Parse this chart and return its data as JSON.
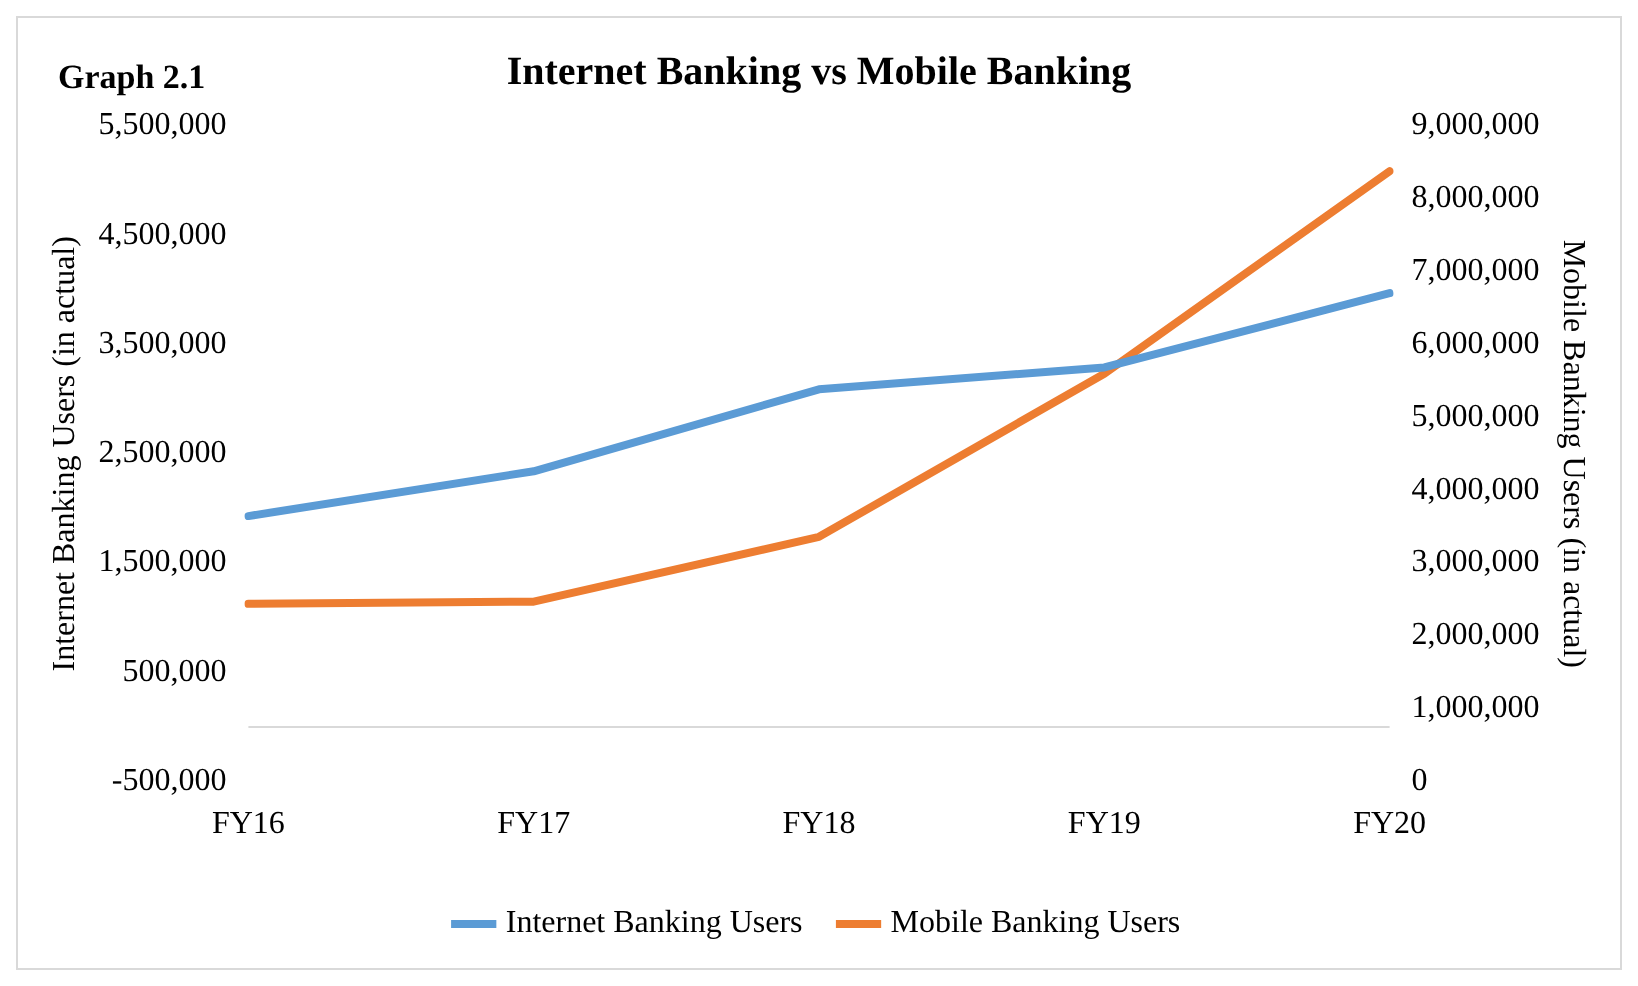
{
  "chart_data": {
    "type": "line",
    "title": "Internet Banking vs Mobile Banking",
    "ylabel": "Internet Banking Users (in actual)",
    "y2label": "Mobile Banking Users (in actual)",
    "annotations": [
      "Graph 2.1"
    ],
    "categories": [
      "FY16",
      "FY17",
      "FY18",
      "FY19",
      "FY20"
    ],
    "series": [
      {
        "name": "Internet Banking Users",
        "color": "#5b9bd5",
        "values": [
          1930000,
          2340000,
          3090000,
          3290000,
          3970000
        ]
      },
      {
        "name": "Mobile Banking Users",
        "color": "#ed7d31",
        "axis": "y2",
        "values": [
          2440000,
          2470000,
          3360000,
          5600000,
          8380000
        ]
      }
    ],
    "ylim": [
      -500000,
      5500000
    ],
    "yticks": [
      {
        "value": -500000,
        "label": "-500,000"
      },
      {
        "value": 500000,
        "label": "500,000"
      },
      {
        "value": 1500000,
        "label": "1,500,000"
      },
      {
        "value": 2500000,
        "label": "2,500,000"
      },
      {
        "value": 3500000,
        "label": "3,500,000"
      },
      {
        "value": 4500000,
        "label": "4,500,000"
      },
      {
        "value": 5500000,
        "label": "5,500,000"
      }
    ],
    "y2lim": [
      0,
      9000000
    ],
    "y2ticks": [
      0,
      {
        "value": 1000000,
        "label": "1,000,000"
      },
      {
        "value": 2000000,
        "label": "2,000,000"
      },
      {
        "value": 3000000,
        "label": "3,000,000"
      },
      {
        "value": 4000000,
        "label": "4,000,000"
      },
      {
        "value": 5000000,
        "label": "5,000,000"
      },
      {
        "value": 6000000,
        "label": "6,000,000"
      },
      {
        "value": 7000000,
        "label": "7,000,000"
      },
      {
        "value": 8000000,
        "label": "8,000,000"
      },
      {
        "value": 9000000,
        "label": "9,000,000"
      }
    ],
    "grid": false,
    "legend": "bottom",
    "marker": "none",
    "line_style": "solid"
  }
}
